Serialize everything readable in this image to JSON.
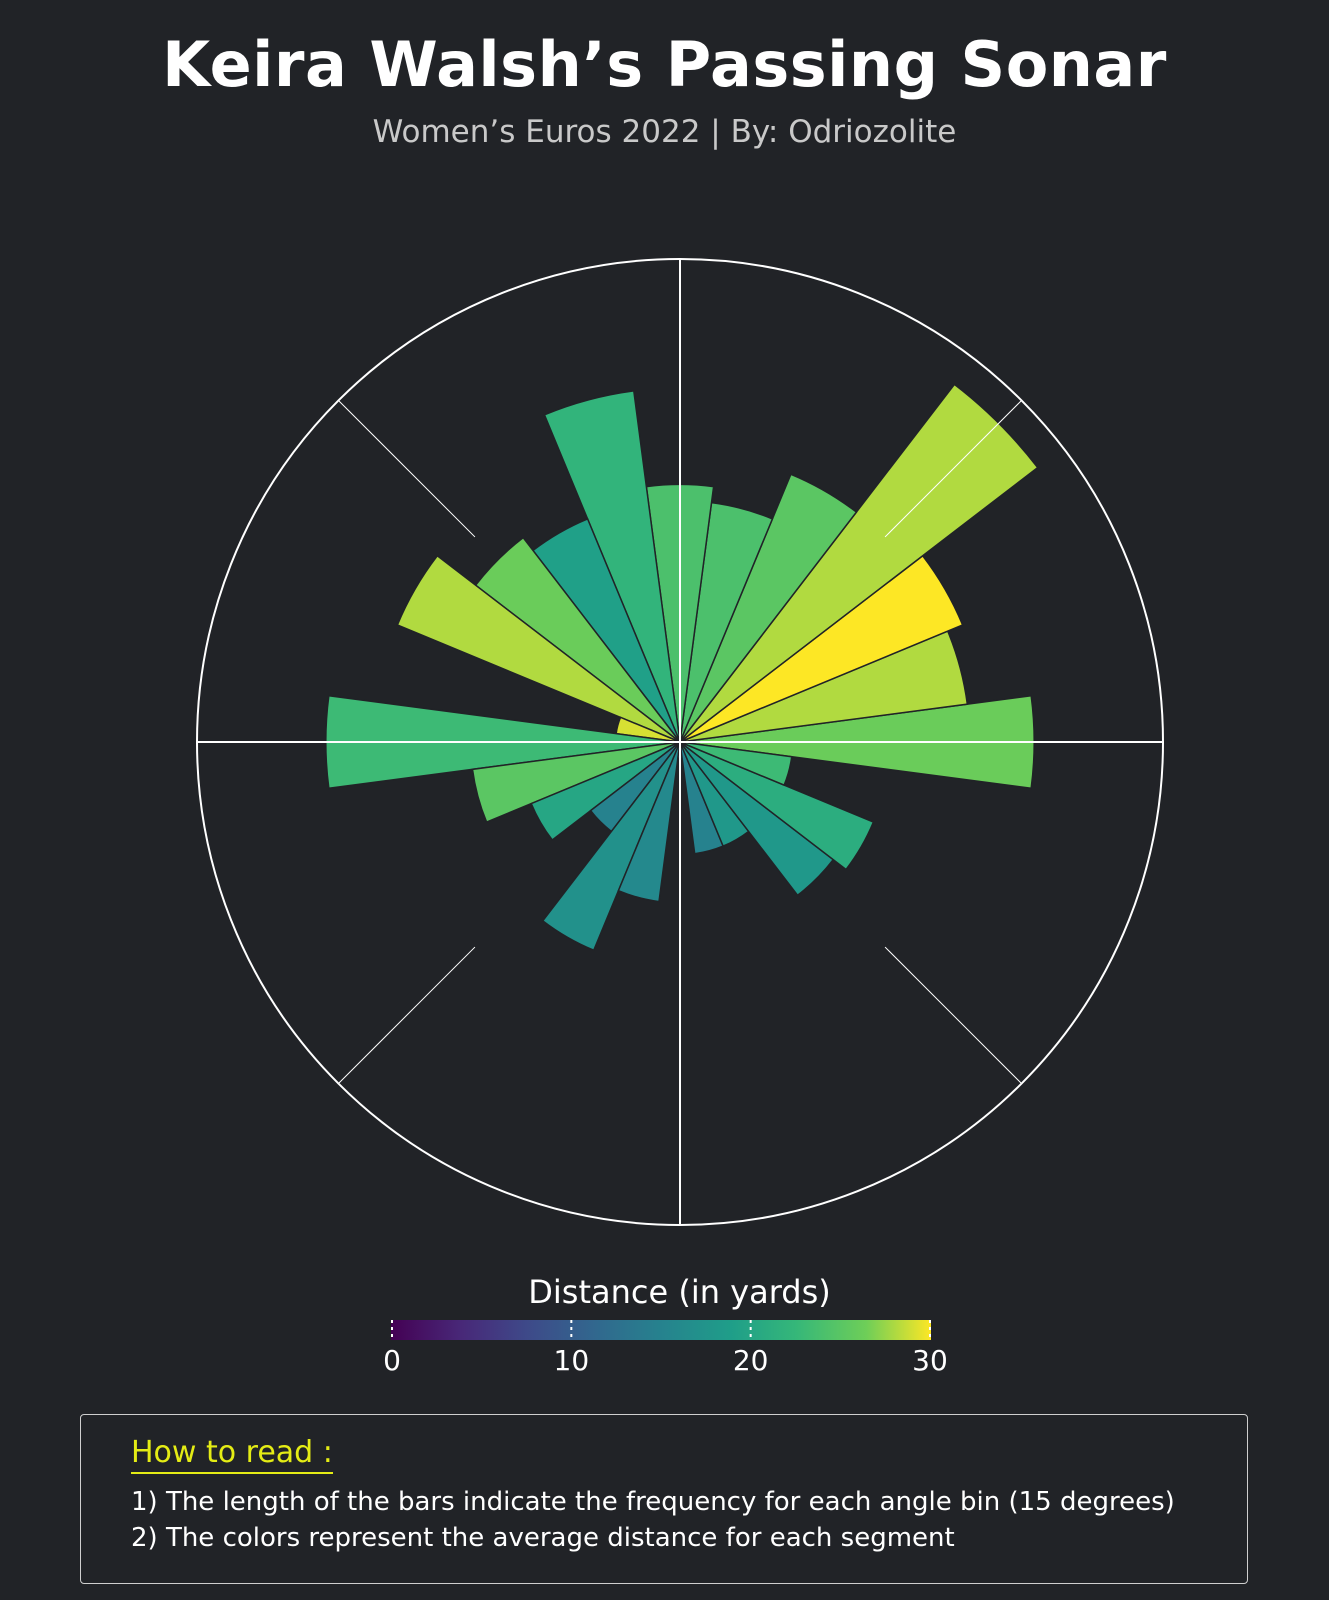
{
  "title": "Keira Walsh’s Passing Sonar",
  "subtitle": "Women’s Euros 2022 | By: Odriozolite",
  "chart_data": {
    "type": "polar-bar",
    "bin_width_degrees": 15,
    "orientation": "0° = right, angles counter-clockwise",
    "radial_axis_max": 30,
    "bins": [
      {
        "angle": 0,
        "frequency": 22,
        "avg_distance": 26
      },
      {
        "angle": 15,
        "frequency": 18,
        "avg_distance": 28
      },
      {
        "angle": 30,
        "frequency": 19,
        "avg_distance": 30
      },
      {
        "angle": 45,
        "frequency": 28,
        "avg_distance": 28
      },
      {
        "angle": 60,
        "frequency": 18,
        "avg_distance": 25
      },
      {
        "angle": 75,
        "frequency": 15,
        "avg_distance": 24
      },
      {
        "angle": 90,
        "frequency": 16,
        "avg_distance": 24
      },
      {
        "angle": 105,
        "frequency": 22,
        "avg_distance": 22
      },
      {
        "angle": 120,
        "frequency": 15,
        "avg_distance": 19
      },
      {
        "angle": 135,
        "frequency": 16,
        "avg_distance": 26
      },
      {
        "angle": 150,
        "frequency": 19,
        "avg_distance": 28
      },
      {
        "angle": 165,
        "frequency": 4,
        "avg_distance": 29
      },
      {
        "angle": 180,
        "frequency": 22,
        "avg_distance": 23
      },
      {
        "angle": 195,
        "frequency": 13,
        "avg_distance": 25
      },
      {
        "angle": 210,
        "frequency": 10,
        "avg_distance": 20
      },
      {
        "angle": 225,
        "frequency": 7,
        "avg_distance": 15
      },
      {
        "angle": 240,
        "frequency": 14,
        "avg_distance": 17
      },
      {
        "angle": 255,
        "frequency": 10,
        "avg_distance": 16
      },
      {
        "angle": 270,
        "frequency": 1,
        "avg_distance": 14
      },
      {
        "angle": 285,
        "frequency": 7,
        "avg_distance": 15
      },
      {
        "angle": 300,
        "frequency": 7,
        "avg_distance": 18
      },
      {
        "angle": 315,
        "frequency": 12,
        "avg_distance": 18
      },
      {
        "angle": 330,
        "frequency": 13,
        "avg_distance": 21
      },
      {
        "angle": 345,
        "frequency": 7,
        "avg_distance": 23
      }
    ],
    "colorbar": {
      "title": "Distance (in yards)",
      "min": 0,
      "max": 30,
      "ticks": [
        0,
        10,
        20,
        30
      ],
      "colormap": "viridis"
    },
    "grid": true
  },
  "howto": {
    "heading": "How to read :",
    "lines": [
      "1) The length of the bars indicate the frequency for each angle bin (15 degrees)",
      "2) The colors represent the average distance for each segment"
    ]
  },
  "colors": {
    "background": "#212327",
    "grid": "#ffffff",
    "accent": "#e4ec15"
  }
}
